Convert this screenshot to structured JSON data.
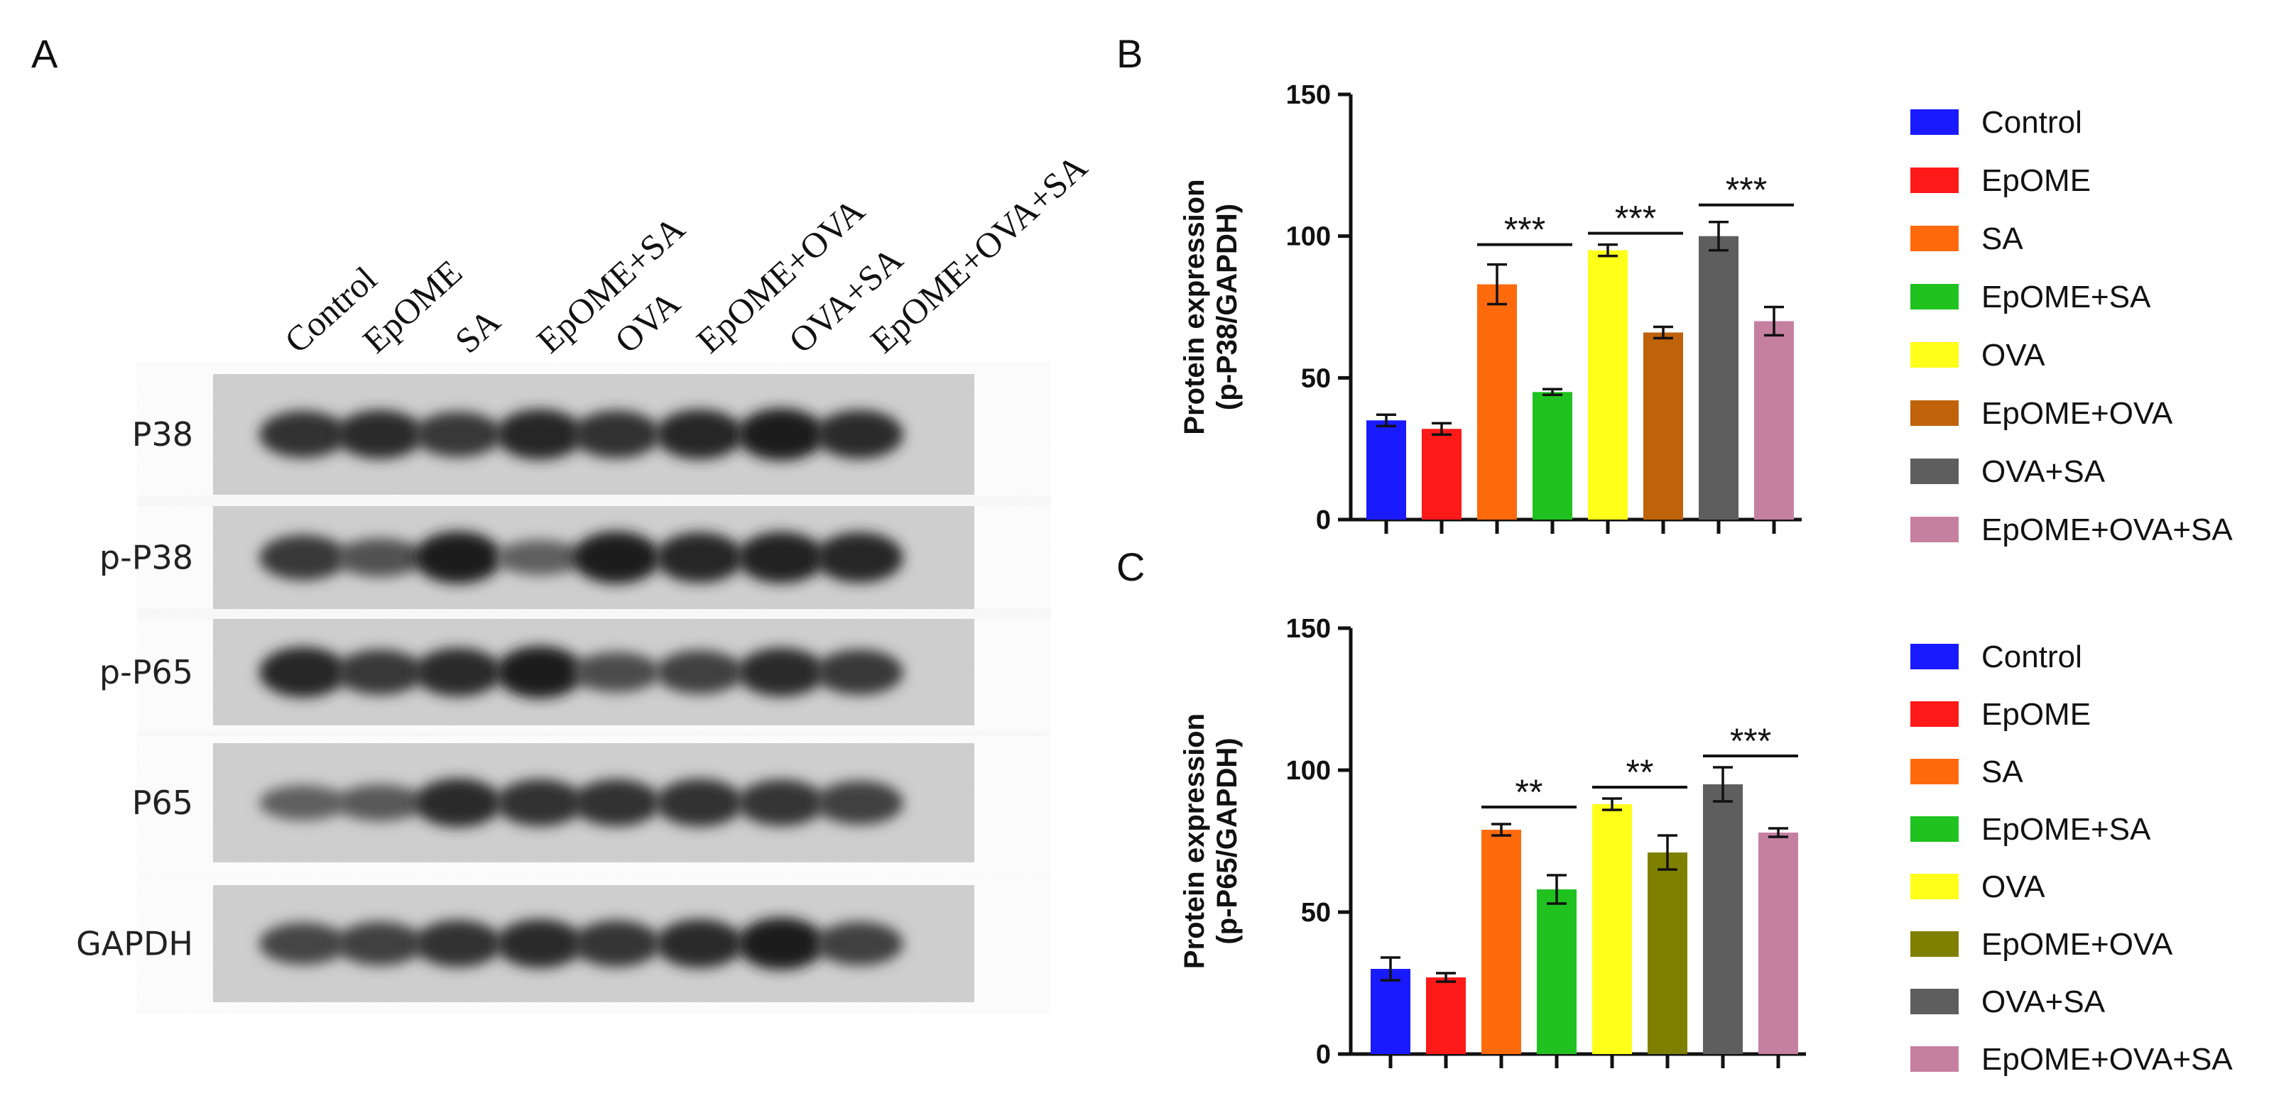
{
  "figure": {
    "panel_a": {
      "letter": "A",
      "lanes": [
        "Control",
        "EpOME",
        "SA",
        "EpOME+SA",
        "OVA",
        "EpOME+OVA",
        "OVA+SA",
        "EpOME+OVA+SA"
      ],
      "rows": [
        {
          "label": "P38",
          "intensities": [
            0.8,
            0.85,
            0.75,
            0.9,
            0.82,
            0.88,
            0.95,
            0.85
          ]
        },
        {
          "label": "p-P38",
          "intensities": [
            0.75,
            0.55,
            0.95,
            0.45,
            0.95,
            0.9,
            0.92,
            0.9
          ]
        },
        {
          "label": "p-P65",
          "intensities": [
            0.9,
            0.75,
            0.85,
            0.95,
            0.6,
            0.7,
            0.85,
            0.75
          ]
        },
        {
          "label": "P65",
          "intensities": [
            0.45,
            0.5,
            0.85,
            0.8,
            0.8,
            0.82,
            0.78,
            0.7
          ]
        },
        {
          "label": "GAPDH",
          "intensities": [
            0.65,
            0.7,
            0.8,
            0.85,
            0.78,
            0.85,
            0.95,
            0.7
          ]
        }
      ]
    },
    "panel_b": {
      "letter": "B"
    },
    "panel_c": {
      "letter": "C"
    }
  },
  "chart_data": [
    {
      "type": "bar",
      "title": "",
      "xlabel": "",
      "ylabel": "Protein expression\n(p-P38/GAPDH)",
      "ylim": [
        0,
        150
      ],
      "yticks": [
        0,
        50,
        100,
        150
      ],
      "categories": [
        "Control",
        "EpOME",
        "SA",
        "EpOME+SA",
        "OVA",
        "EpOME+OVA",
        "OVA+SA",
        "EpOME+OVA+SA"
      ],
      "values": [
        35,
        32,
        83,
        45,
        95,
        66,
        100,
        70
      ],
      "errors": [
        2,
        2,
        7,
        1,
        2,
        2,
        5,
        5
      ],
      "colors": [
        "#1a1aff",
        "#ff1a1a",
        "#ff6a0d",
        "#1fc21f",
        "#ffff1a",
        "#c0620a",
        "#5e5e5e",
        "#c6809f"
      ],
      "significance": [
        {
          "from": 2,
          "to": 3,
          "label": "***",
          "y": 97
        },
        {
          "from": 4,
          "to": 5,
          "label": "***",
          "y": 101
        },
        {
          "from": 6,
          "to": 7,
          "label": "***",
          "y": 111
        }
      ],
      "legend": {
        "position": "right"
      },
      "grid": false
    },
    {
      "type": "bar",
      "title": "",
      "xlabel": "",
      "ylabel": "Protein expression\n(p-P65/GAPDH)",
      "ylim": [
        0,
        150
      ],
      "yticks": [
        0,
        50,
        100,
        150
      ],
      "categories": [
        "Control",
        "EpOME",
        "SA",
        "EpOME+SA",
        "OVA",
        "EpOME+OVA",
        "OVA+SA",
        "EpOME+OVA+SA"
      ],
      "values": [
        30,
        27,
        79,
        58,
        88,
        71,
        95,
        78
      ],
      "errors": [
        4,
        1.5,
        2,
        5,
        2,
        6,
        6,
        1.5
      ],
      "colors": [
        "#1a1aff",
        "#ff1a1a",
        "#ff6a0d",
        "#1fc21f",
        "#ffff1a",
        "#808000",
        "#5e5e5e",
        "#c6809f"
      ],
      "significance": [
        {
          "from": 2,
          "to": 3,
          "label": "**",
          "y": 87
        },
        {
          "from": 4,
          "to": 5,
          "label": "**",
          "y": 94
        },
        {
          "from": 6,
          "to": 7,
          "label": "***",
          "y": 105
        }
      ],
      "legend": {
        "position": "right"
      },
      "grid": false
    }
  ]
}
